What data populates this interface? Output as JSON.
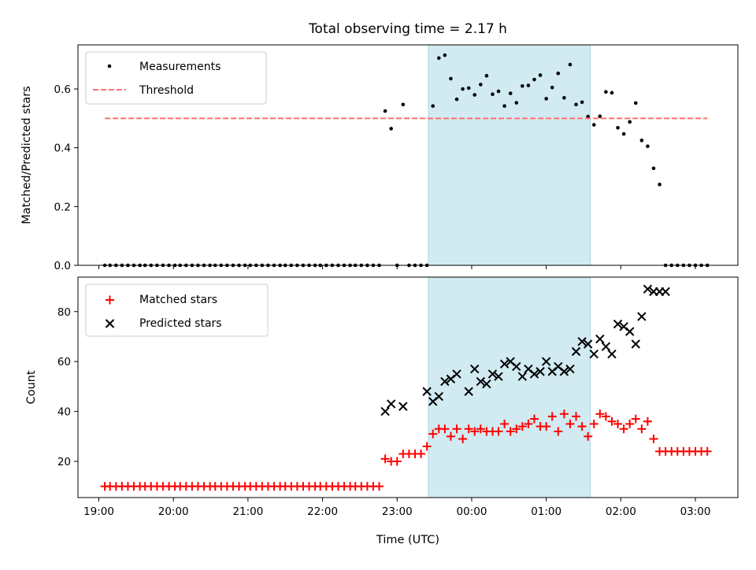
{
  "chart_data": {
    "title": "Total observing time = 2.17 h",
    "xlabel": "Time (UTC)",
    "x_unit": "hours (UTC)",
    "xlim": [
      18.72,
      27.57
    ],
    "xticks": [
      19,
      20,
      21,
      22,
      23,
      24,
      25,
      26,
      27
    ],
    "xtick_labels": [
      "19:00",
      "20:00",
      "21:00",
      "22:00",
      "23:00",
      "00:00",
      "01:00",
      "02:00",
      "03:00"
    ],
    "highlight_span": {
      "x_start": 23.42,
      "x_end": 25.59,
      "color": "#add8e6"
    },
    "panels": [
      {
        "type": "scatter",
        "ylabel": "Matched/Predicted stars",
        "ylim": [
          0,
          0.75
        ],
        "yticks": [
          0.0,
          0.2,
          0.4,
          0.6
        ],
        "ytick_labels": [
          "0.0",
          "0.2",
          "0.4",
          "0.6"
        ],
        "x_ticks_labelled": false,
        "legend_position": "upper-left",
        "series": [
          {
            "name": "Measurements",
            "marker": "dot",
            "color": "#000000",
            "x": [
              19.08,
              19.15,
              19.23,
              19.31,
              19.39,
              19.47,
              19.55,
              19.62,
              19.7,
              19.78,
              19.86,
              19.94,
              20.02,
              20.09,
              20.17,
              20.25,
              20.33,
              20.41,
              20.49,
              20.56,
              20.64,
              20.72,
              20.8,
              20.88,
              20.96,
              21.03,
              21.11,
              21.19,
              21.27,
              21.35,
              21.43,
              21.5,
              21.58,
              21.66,
              21.74,
              21.82,
              21.9,
              21.97,
              22.05,
              22.13,
              22.21,
              22.29,
              22.37,
              22.44,
              22.52,
              22.6,
              22.68,
              22.76,
              22.84,
              22.92,
              23.0,
              23.08,
              23.16,
              23.24,
              23.32,
              23.4,
              23.48,
              23.56,
              23.64,
              23.72,
              23.8,
              23.88,
              23.96,
              24.04,
              24.12,
              24.2,
              24.28,
              24.36,
              24.44,
              24.52,
              24.6,
              24.68,
              24.76,
              24.84,
              24.92,
              25.0,
              25.08,
              25.16,
              25.24,
              25.32,
              25.4,
              25.48,
              25.56,
              25.64,
              25.72,
              25.8,
              25.88,
              25.96,
              26.04,
              26.12,
              26.2,
              26.28,
              26.36,
              26.44,
              26.52,
              26.6,
              26.68,
              26.76,
              26.84,
              26.92,
              27.0,
              27.08,
              27.16
            ],
            "y": [
              0,
              0,
              0,
              0,
              0,
              0,
              0,
              0,
              0,
              0,
              0,
              0,
              0,
              0,
              0,
              0,
              0,
              0,
              0,
              0,
              0,
              0,
              0,
              0,
              0,
              0,
              0,
              0,
              0,
              0,
              0,
              0,
              0,
              0,
              0,
              0,
              0,
              0,
              0,
              0,
              0,
              0,
              0,
              0,
              0,
              0,
              0,
              0,
              0.525,
              0.465,
              0,
              0.547,
              0,
              0,
              0,
              0,
              0.542,
              0.705,
              0.715,
              0.635,
              0.565,
              0.6,
              0.603,
              0.58,
              0.615,
              0.645,
              0.582,
              0.592,
              0.542,
              0.585,
              0.553,
              0.61,
              0.612,
              0.632,
              0.647,
              0.567,
              0.605,
              0.653,
              0.57,
              0.683,
              0.547,
              0.555,
              0.506,
              0.478,
              0.507,
              0.59,
              0.587,
              0.468,
              0.447,
              0.488,
              0.552,
              0.425,
              0.405,
              0.33,
              0.275,
              0,
              0,
              0,
              0,
              0,
              0,
              0,
              0
            ]
          },
          {
            "name": "Threshold",
            "type": "line",
            "style": "dashed",
            "color": "#ff7070",
            "x": [
              19.08,
              27.16
            ],
            "y": [
              0.5,
              0.5
            ]
          }
        ]
      },
      {
        "type": "scatter",
        "ylabel": "Count",
        "ylim": [
          5.5,
          93.8
        ],
        "yticks": [
          20,
          40,
          60,
          80
        ],
        "ytick_labels": [
          "20",
          "40",
          "60",
          "80"
        ],
        "x_ticks_labelled": true,
        "legend_position": "upper-left",
        "series": [
          {
            "name": "Matched stars",
            "marker": "plus",
            "color": "#ff0000",
            "x": [
              19.08,
              19.15,
              19.23,
              19.31,
              19.39,
              19.47,
              19.55,
              19.62,
              19.7,
              19.78,
              19.86,
              19.94,
              20.02,
              20.09,
              20.17,
              20.25,
              20.33,
              20.41,
              20.49,
              20.56,
              20.64,
              20.72,
              20.8,
              20.88,
              20.96,
              21.03,
              21.11,
              21.19,
              21.27,
              21.35,
              21.43,
              21.5,
              21.58,
              21.66,
              21.74,
              21.82,
              21.9,
              21.97,
              22.05,
              22.13,
              22.21,
              22.29,
              22.37,
              22.44,
              22.52,
              22.6,
              22.68,
              22.76,
              22.84,
              22.92,
              23.0,
              23.08,
              23.16,
              23.24,
              23.32,
              23.4,
              23.48,
              23.56,
              23.64,
              23.72,
              23.8,
              23.88,
              23.96,
              24.04,
              24.12,
              24.2,
              24.28,
              24.36,
              24.44,
              24.52,
              24.6,
              24.68,
              24.76,
              24.84,
              24.92,
              25.0,
              25.08,
              25.16,
              25.24,
              25.32,
              25.4,
              25.48,
              25.56,
              25.64,
              25.72,
              25.8,
              25.88,
              25.96,
              26.04,
              26.12,
              26.2,
              26.28,
              26.36,
              26.44,
              26.52,
              26.6,
              26.68,
              26.76,
              26.84,
              26.92,
              27.0,
              27.08,
              27.16
            ],
            "y": [
              10,
              10,
              10,
              10,
              10,
              10,
              10,
              10,
              10,
              10,
              10,
              10,
              10,
              10,
              10,
              10,
              10,
              10,
              10,
              10,
              10,
              10,
              10,
              10,
              10,
              10,
              10,
              10,
              10,
              10,
              10,
              10,
              10,
              10,
              10,
              10,
              10,
              10,
              10,
              10,
              10,
              10,
              10,
              10,
              10,
              10,
              10,
              10,
              21,
              20,
              20,
              23,
              23,
              23,
              23,
              26,
              31,
              33,
              33,
              30,
              33,
              29,
              33,
              32,
              33,
              32,
              32,
              32,
              35,
              32,
              33,
              34,
              35,
              37,
              34,
              34,
              38,
              32,
              39,
              35,
              38,
              34,
              30,
              35,
              39,
              38,
              36,
              35,
              33,
              35,
              37,
              33,
              36,
              29,
              24,
              24,
              24,
              24,
              24,
              24,
              24,
              24,
              24
            ]
          },
          {
            "name": "Predicted stars",
            "marker": "cross",
            "color": "#000000",
            "x": [
              22.84,
              22.92,
              23.08,
              23.4,
              23.48,
              23.56,
              23.64,
              23.72,
              23.8,
              23.96,
              24.04,
              24.12,
              24.2,
              24.28,
              24.36,
              24.44,
              24.52,
              24.6,
              24.68,
              24.76,
              24.84,
              24.92,
              25.0,
              25.08,
              25.16,
              25.24,
              25.32,
              25.4,
              25.48,
              25.56,
              25.64,
              25.72,
              25.8,
              25.88,
              25.96,
              26.04,
              26.12,
              26.2,
              26.28,
              26.36,
              26.44,
              26.52,
              26.6
            ],
            "y": [
              40,
              43,
              42,
              48,
              44,
              46,
              52,
              53,
              55,
              48,
              57,
              52,
              51,
              55,
              54,
              59,
              60,
              58,
              54,
              57,
              55,
              56,
              60,
              56,
              58,
              56,
              57,
              64,
              68,
              67,
              63,
              69,
              66,
              63,
              75,
              74,
              72,
              67,
              78,
              89,
              88,
              88,
              88
            ]
          }
        ]
      }
    ]
  }
}
